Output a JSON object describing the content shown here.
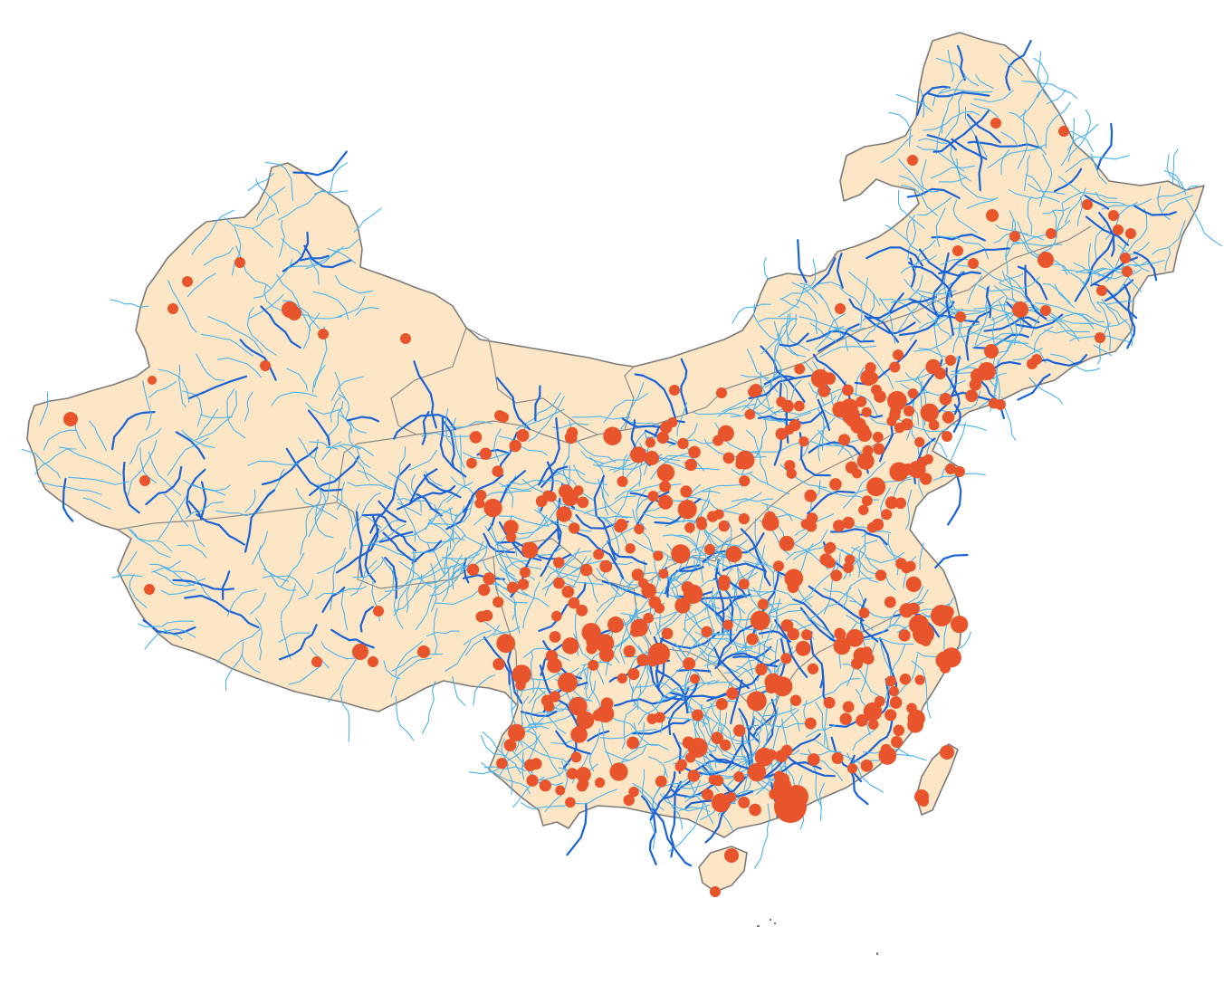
{
  "map": {
    "type": "thematic-point-map",
    "layers": [
      "land",
      "province-borders",
      "rivers",
      "city-points"
    ],
    "colors": {
      "background": "#ffffff",
      "land": "#fde6c5",
      "border": "#7a7a7a",
      "river_light": "#4ab3ee",
      "river_dark": "#1a63d6",
      "city": "#e8542b"
    },
    "legend": null
  }
}
